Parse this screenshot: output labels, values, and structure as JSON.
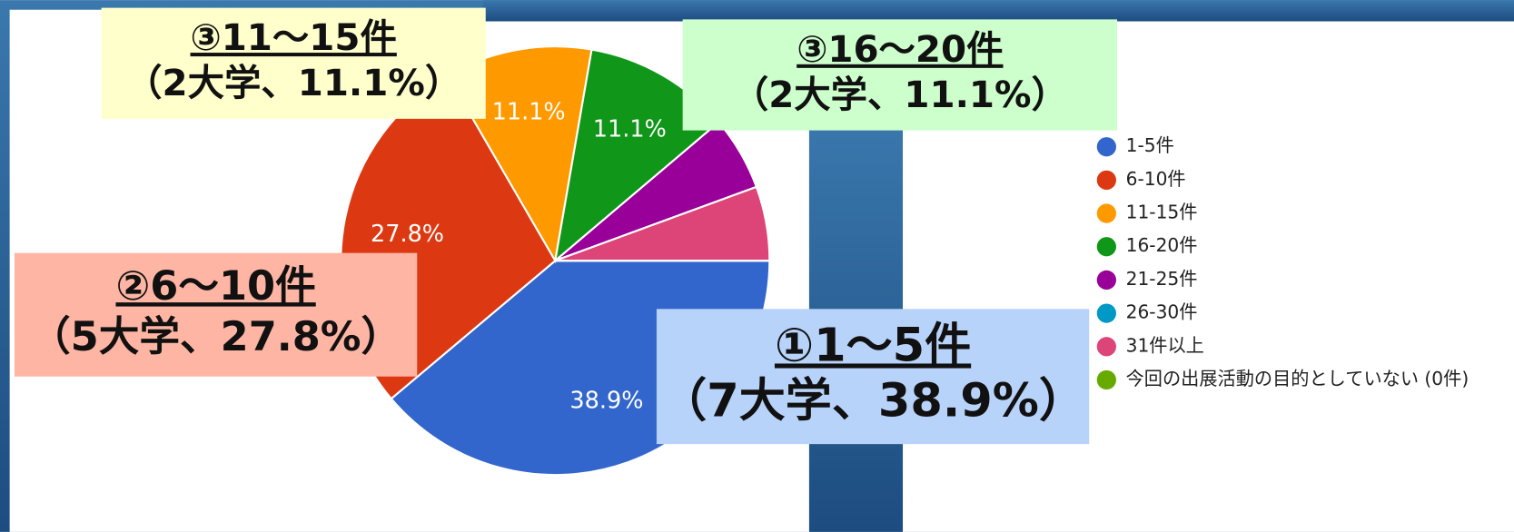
{
  "chart_data": {
    "type": "pie",
    "categories": [
      "1-5件",
      "6-10件",
      "11-15件",
      "16-20件",
      "21-25件",
      "26-30件",
      "31件以上",
      "今回の出展活動の目的としていない (0件)"
    ],
    "values": [
      38.9,
      27.8,
      11.1,
      11.1,
      5.6,
      0,
      5.6,
      0
    ],
    "value_labels": [
      "38.9%",
      "27.8%",
      "11.1%",
      "11.1%",
      null,
      null,
      null,
      null
    ],
    "colors": [
      "#3366cc",
      "#dc3912",
      "#ff9900",
      "#109618",
      "#990099",
      "#0099c6",
      "#dd4477",
      "#66aa00"
    ],
    "legend": "right",
    "annotations": [
      {
        "title": "③11～15件",
        "detail": "（2大学、11.1%）",
        "color": "#ffffcc"
      },
      {
        "title": "③16～20件",
        "detail": "（2大学、11.1%）",
        "color": "#ccffcc"
      },
      {
        "title": "②6～10件",
        "detail": "（5大学、27.8%）",
        "color": "#ffb5a3"
      },
      {
        "title": "①1～5件",
        "detail": "（7大学、38.9%）",
        "color": "#b8d3fa"
      }
    ]
  }
}
